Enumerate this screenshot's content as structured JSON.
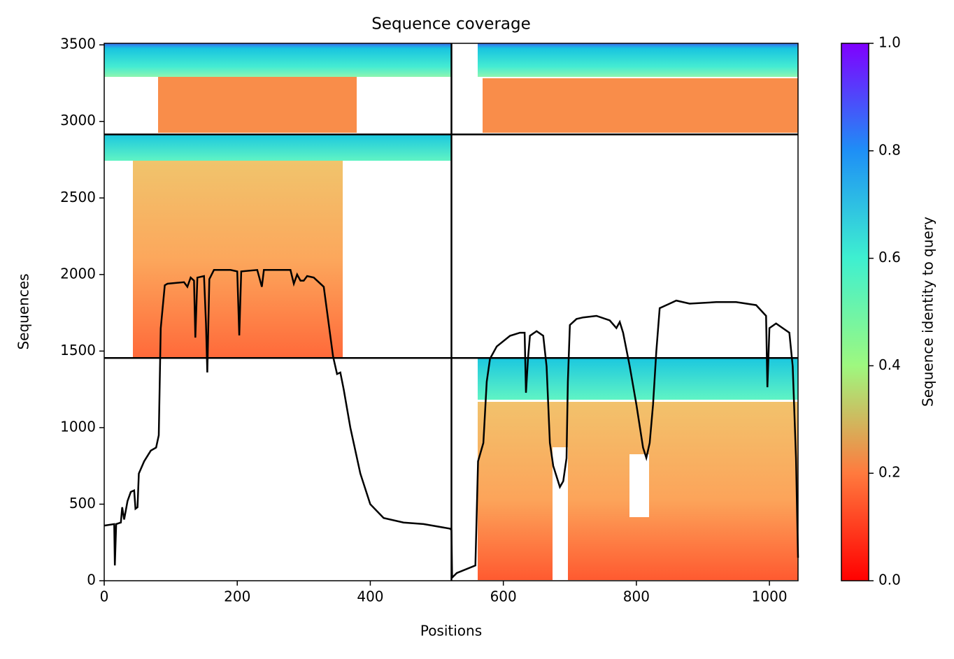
{
  "chart_data": {
    "type": "line",
    "title": "Sequence coverage",
    "xlabel": "Positions",
    "ylabel": "Sequences",
    "color": "#000000",
    "x": [
      0,
      15,
      16,
      18,
      25,
      27,
      30,
      35,
      40,
      45,
      47,
      50,
      52,
      60,
      70,
      78,
      82,
      85,
      91,
      95,
      120,
      125,
      130,
      135,
      137,
      140,
      150,
      153,
      155,
      158,
      165,
      190,
      200,
      203,
      206,
      230,
      237,
      240,
      280,
      285,
      290,
      295,
      300,
      305,
      315,
      330,
      344,
      350,
      355,
      360,
      370,
      385,
      400,
      420,
      450,
      480,
      520,
      522,
      523,
      530,
      558,
      562,
      570,
      575,
      580,
      590,
      610,
      625,
      632,
      634,
      637,
      640,
      650,
      660,
      665,
      670,
      675,
      685,
      690,
      695,
      697,
      700,
      710,
      720,
      740,
      760,
      770,
      775,
      780,
      790,
      800,
      810,
      815,
      820,
      825,
      830,
      835,
      850,
      860,
      880,
      920,
      950,
      980,
      995,
      997,
      1000,
      1010,
      1020,
      1030,
      1035,
      1040,
      1043
    ],
    "values": [
      360,
      370,
      100,
      370,
      380,
      480,
      400,
      520,
      580,
      590,
      470,
      480,
      700,
      780,
      850,
      870,
      950,
      1648,
      1930,
      1940,
      1950,
      1920,
      1980,
      1960,
      1588,
      1980,
      1990,
      1680,
      1360,
      1970,
      2030,
      2030,
      2020,
      1602,
      2020,
      2030,
      1920,
      2030,
      2030,
      1940,
      2000,
      1960,
      1960,
      1990,
      1980,
      1920,
      1465,
      1350,
      1360,
      1250,
      1000,
      700,
      500,
      410,
      380,
      370,
      340,
      330,
      20,
      50,
      100,
      780,
      900,
      1300,
      1450,
      1530,
      1600,
      1620,
      1620,
      1228,
      1450,
      1600,
      1630,
      1600,
      1400,
      900,
      750,
      612,
      650,
      800,
      1300,
      1670,
      1710,
      1720,
      1730,
      1700,
      1650,
      1690,
      1620,
      1400,
      1150,
      870,
      803,
      900,
      1150,
      1500,
      1780,
      1810,
      1830,
      1810,
      1820,
      1820,
      1800,
      1730,
      1264,
      1650,
      1680,
      1650,
      1620,
      1400,
      800,
      150
    ],
    "xlim": [
      0,
      1043
    ],
    "ylim": [
      0,
      3510
    ],
    "xticks": [
      0,
      200,
      400,
      600,
      800,
      1000
    ],
    "yticks": [
      0,
      500,
      1000,
      1500,
      2000,
      2500,
      3000,
      3500
    ],
    "vlines": [
      522
    ],
    "hlines": [
      1455,
      2915
    ],
    "colorbar": {
      "label": "Sequence identity to query",
      "lim": [
        0,
        1
      ],
      "ticks": [
        {
          "value": 0,
          "label": "0.0"
        },
        0.2,
        0.4,
        0.6,
        0.8,
        {
          "value": 1,
          "label": "1.0"
        }
      ]
    }
  }
}
